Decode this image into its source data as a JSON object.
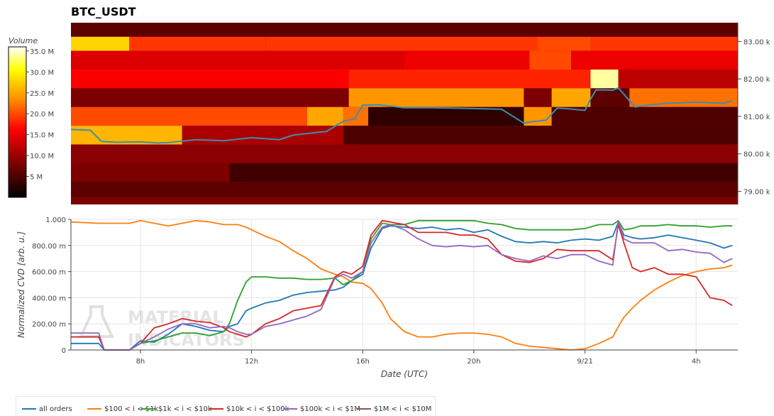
{
  "title": "BTC_USDT",
  "colorbar": {
    "title": "Volume",
    "ticks": [
      {
        "label": "35.0 M",
        "value": 35
      },
      {
        "label": "30.0 M",
        "value": 30
      },
      {
        "label": "25.0 M",
        "value": 25
      },
      {
        "label": "20.0 M",
        "value": 20
      },
      {
        "label": "15.0 M",
        "value": 15
      },
      {
        "label": "10.0 M",
        "value": 10
      },
      {
        "label": "5 M",
        "value": 5
      }
    ],
    "range": [
      0,
      36
    ]
  },
  "watermark": "MATERIAL INDICATORS",
  "chart_data": [
    {
      "type": "heatmap",
      "title": "BTC_USDT",
      "ylabel": "",
      "yticks": [
        "83.00 k",
        "82.00 k",
        "81.00 k",
        "80.00 k",
        "79.00 k"
      ],
      "ytick_values": [
        83000,
        82000,
        81000,
        80000,
        79000
      ],
      "ylim": [
        78650,
        83500
      ],
      "xlim_hours": [
        5.5,
        29.5
      ],
      "colorscale": [
        "#000000",
        "#8b0000",
        "#ff0000",
        "#ff8c00",
        "#ffff00",
        "#ffffff"
      ],
      "bands": [
        {
          "y": 83250,
          "segments": [
            [
              5.5,
              29.5,
              6
            ]
          ]
        },
        {
          "y": 83000,
          "segments": [
            [
              5.5,
              7.6,
              28
            ],
            [
              7.6,
              12.5,
              19
            ],
            [
              12.5,
              22.3,
              19
            ],
            [
              22.3,
              24.2,
              20
            ],
            [
              24.2,
              29.5,
              19
            ]
          ]
        },
        {
          "y": 82500,
          "segments": [
            [
              5.5,
              17.5,
              14
            ],
            [
              17.5,
              22,
              15
            ],
            [
              22,
              23.5,
              20
            ],
            [
              23.5,
              29.5,
              15
            ]
          ]
        },
        {
          "y": 82000,
          "segments": [
            [
              5.5,
              15.5,
              16
            ],
            [
              15.5,
              24.2,
              18
            ],
            [
              24.2,
              25.2,
              34
            ],
            [
              25.2,
              29.5,
              12
            ]
          ]
        },
        {
          "y": 81500,
          "segments": [
            [
              5.5,
              15.5,
              8
            ],
            [
              15.5,
              21.8,
              24
            ],
            [
              21.8,
              22.8,
              8
            ],
            [
              22.8,
              24.2,
              25
            ],
            [
              24.2,
              25.6,
              6
            ],
            [
              25.6,
              29.5,
              22
            ]
          ]
        },
        {
          "y": 81000,
          "segments": [
            [
              5.5,
              14,
              20
            ],
            [
              14,
              15.3,
              25
            ],
            [
              15.3,
              16.2,
              22
            ],
            [
              16.2,
              21.8,
              3
            ],
            [
              21.8,
              22.8,
              24
            ],
            [
              22.8,
              29.5,
              5
            ]
          ]
        },
        {
          "y": 80500,
          "segments": [
            [
              5.5,
              9.5,
              26
            ],
            [
              9.5,
              15.3,
              11
            ],
            [
              15.3,
              29.5,
              5
            ]
          ]
        },
        {
          "y": 80000,
          "segments": [
            [
              5.5,
              29.5,
              9
            ]
          ]
        },
        {
          "y": 79500,
          "segments": [
            [
              5.5,
              11.2,
              8
            ],
            [
              11.2,
              29.5,
              4
            ]
          ]
        },
        {
          "y": 79000,
          "segments": [
            [
              5.5,
              29.5,
              6
            ]
          ]
        },
        {
          "y": 78700,
          "segments": [
            [
              5.5,
              29.5,
              8
            ]
          ]
        }
      ],
      "price_line": {
        "name": "price",
        "color": "#3a8fb0",
        "x_hours": [
          5.5,
          6.2,
          6.6,
          7.1,
          8,
          8.6,
          9,
          10,
          11,
          12,
          13,
          13.5,
          14.3,
          14.7,
          15.3,
          15.7,
          16,
          16.6,
          17.5,
          18.5,
          20,
          21,
          21.8,
          22,
          22.6,
          23,
          23.3,
          24,
          24.2,
          24.4,
          25,
          25.2,
          25.8,
          26.2,
          27,
          28,
          29,
          29.3
        ],
        "y": [
          80650,
          80630,
          80330,
          80310,
          80320,
          80290,
          80300,
          80380,
          80350,
          80430,
          80380,
          80500,
          80570,
          80600,
          80870,
          80930,
          81300,
          81310,
          81230,
          81230,
          81210,
          81190,
          80820,
          80850,
          80900,
          81220,
          81210,
          81160,
          81460,
          81710,
          81700,
          81760,
          81250,
          81300,
          81350,
          81380,
          81350,
          81420
        ]
      }
    },
    {
      "type": "line",
      "title": "",
      "xlabel": "Date (UTC)",
      "ylabel": "Normalized CVD [arb. u.]",
      "ylim": [
        0,
        1
      ],
      "yticks": [
        "0",
        "200.00 m",
        "400.00 m",
        "600.00 m",
        "800.00 m",
        "1.000"
      ],
      "ytick_values": [
        0,
        0.2,
        0.4,
        0.6,
        0.8,
        1.0
      ],
      "xticks": [
        "8h",
        "12h",
        "16h",
        "20h",
        "9/21",
        "4h"
      ],
      "xtick_hours": [
        8,
        12,
        16,
        20,
        24,
        28
      ],
      "xlim_hours": [
        5.5,
        29.5
      ],
      "x_hours": [
        5.5,
        6.5,
        6.7,
        7.6,
        8,
        8.5,
        9,
        9.5,
        10,
        10.5,
        11,
        11.2,
        11.5,
        11.8,
        12,
        12.5,
        13,
        13.5,
        14,
        14.5,
        15,
        15.3,
        15.6,
        16,
        16.3,
        16.7,
        17,
        17.5,
        18,
        18.5,
        19,
        19.5,
        20,
        20.5,
        21,
        21.5,
        22,
        22.5,
        23,
        23.5,
        24,
        24.5,
        25,
        25.2,
        25.4,
        25.7,
        26,
        26.5,
        27,
        27.5,
        28,
        28.5,
        29,
        29.3
      ],
      "series": [
        {
          "name": "all orders",
          "color": "#1f77b4",
          "values": [
            0.05,
            0.05,
            0.0,
            0.0,
            0.07,
            0.06,
            0.12,
            0.2,
            0.18,
            0.15,
            0.14,
            0.18,
            0.2,
            0.3,
            0.32,
            0.36,
            0.38,
            0.42,
            0.44,
            0.45,
            0.46,
            0.48,
            0.53,
            0.58,
            0.78,
            0.93,
            0.95,
            0.94,
            0.93,
            0.94,
            0.92,
            0.93,
            0.9,
            0.92,
            0.87,
            0.83,
            0.82,
            0.83,
            0.82,
            0.84,
            0.85,
            0.84,
            0.87,
            0.98,
            0.88,
            0.86,
            0.85,
            0.86,
            0.88,
            0.86,
            0.84,
            0.82,
            0.78,
            0.8
          ]
        },
        {
          "name": "$100 < i < $1k",
          "color": "#ff7f0e",
          "values": [
            0.98,
            0.97,
            0.97,
            0.97,
            0.99,
            0.97,
            0.95,
            0.97,
            0.99,
            0.98,
            0.96,
            0.96,
            0.96,
            0.94,
            0.92,
            0.87,
            0.83,
            0.76,
            0.7,
            0.62,
            0.58,
            0.56,
            0.52,
            0.51,
            0.47,
            0.36,
            0.24,
            0.14,
            0.1,
            0.1,
            0.12,
            0.13,
            0.13,
            0.12,
            0.1,
            0.05,
            0.03,
            0.02,
            0.01,
            0.0,
            0.01,
            0.05,
            0.1,
            0.18,
            0.25,
            0.32,
            0.38,
            0.46,
            0.52,
            0.57,
            0.6,
            0.62,
            0.63,
            0.65
          ]
        },
        {
          "name": "$1k < i < $10k",
          "color": "#2ca02c",
          "values": [
            0.1,
            0.1,
            0.0,
            0.0,
            0.05,
            0.07,
            0.1,
            0.13,
            0.13,
            0.11,
            0.14,
            0.2,
            0.38,
            0.52,
            0.56,
            0.56,
            0.55,
            0.55,
            0.54,
            0.54,
            0.55,
            0.5,
            0.53,
            0.6,
            0.85,
            0.97,
            0.96,
            0.96,
            0.99,
            0.99,
            0.99,
            0.99,
            0.99,
            0.97,
            0.96,
            0.93,
            0.92,
            0.92,
            0.92,
            0.92,
            0.93,
            0.96,
            0.96,
            0.99,
            0.92,
            0.93,
            0.95,
            0.95,
            0.96,
            0.95,
            0.95,
            0.94,
            0.95,
            0.95
          ]
        },
        {
          "name": "$10k < i < $100k",
          "color": "#d62728",
          "values": [
            0.1,
            0.1,
            0.0,
            0.0,
            0.05,
            0.17,
            0.2,
            0.24,
            0.22,
            0.21,
            0.17,
            0.14,
            0.12,
            0.1,
            0.12,
            0.2,
            0.24,
            0.3,
            0.32,
            0.34,
            0.56,
            0.6,
            0.58,
            0.64,
            0.88,
            0.99,
            0.98,
            0.96,
            0.9,
            0.9,
            0.9,
            0.88,
            0.88,
            0.85,
            0.73,
            0.68,
            0.67,
            0.7,
            0.77,
            0.76,
            0.76,
            0.76,
            0.69,
            0.96,
            0.82,
            0.63,
            0.6,
            0.63,
            0.58,
            0.58,
            0.56,
            0.4,
            0.38,
            0.34
          ]
        },
        {
          "name": "$100k < i < $1M",
          "color": "#9467bd",
          "values": [
            0.13,
            0.13,
            0.0,
            0.0,
            0.05,
            0.1,
            0.16,
            0.2,
            0.2,
            0.17,
            0.18,
            0.17,
            0.14,
            0.12,
            0.12,
            0.18,
            0.2,
            0.23,
            0.26,
            0.31,
            0.55,
            0.58,
            0.55,
            0.6,
            0.82,
            0.94,
            0.96,
            0.92,
            0.85,
            0.8,
            0.79,
            0.8,
            0.79,
            0.8,
            0.73,
            0.7,
            0.68,
            0.72,
            0.7,
            0.73,
            0.73,
            0.68,
            0.65,
            0.99,
            0.85,
            0.82,
            0.82,
            0.82,
            0.76,
            0.77,
            0.75,
            0.74,
            0.67,
            0.7
          ]
        },
        {
          "name": "$1M < i < $10M",
          "color": "#8c564b",
          "values": []
        }
      ]
    }
  ]
}
